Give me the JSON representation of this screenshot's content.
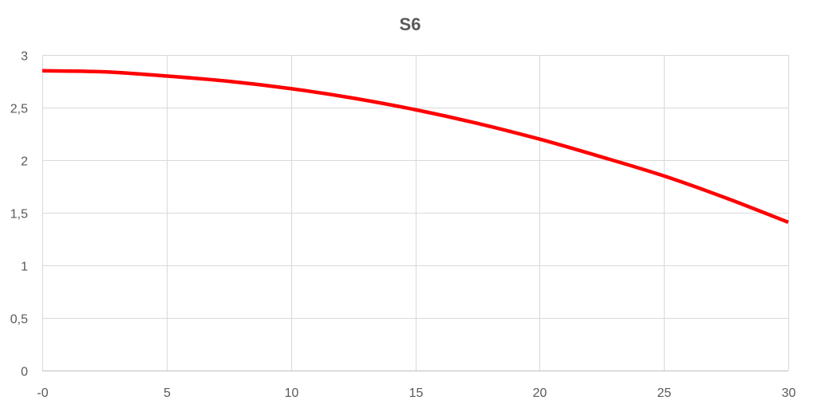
{
  "chart_data": {
    "type": "line",
    "title": "S6",
    "xlabel": "",
    "ylabel": "",
    "xlim": [
      0,
      30
    ],
    "ylim": [
      0,
      3
    ],
    "x_ticks": [
      0,
      5,
      10,
      15,
      20,
      25,
      30
    ],
    "x_tick_labels": [
      "-0",
      "5",
      "10",
      "15",
      "20",
      "25",
      "30"
    ],
    "y_ticks": [
      0,
      0.5,
      1,
      1.5,
      2,
      2.5,
      3
    ],
    "y_tick_labels": [
      "0",
      "0,5",
      "1",
      "1,5",
      "2",
      "2,5",
      "3"
    ],
    "grid": true,
    "legend": "none",
    "series": [
      {
        "color": "#ff0000",
        "x": [
          0,
          2.5,
          5,
          7.5,
          10,
          12.5,
          15,
          17.5,
          20,
          22.5,
          25,
          27.5,
          30
        ],
        "y": [
          2.85,
          2.84,
          2.8,
          2.75,
          2.68,
          2.59,
          2.48,
          2.35,
          2.2,
          2.03,
          1.85,
          1.64,
          1.41
        ]
      }
    ]
  }
}
